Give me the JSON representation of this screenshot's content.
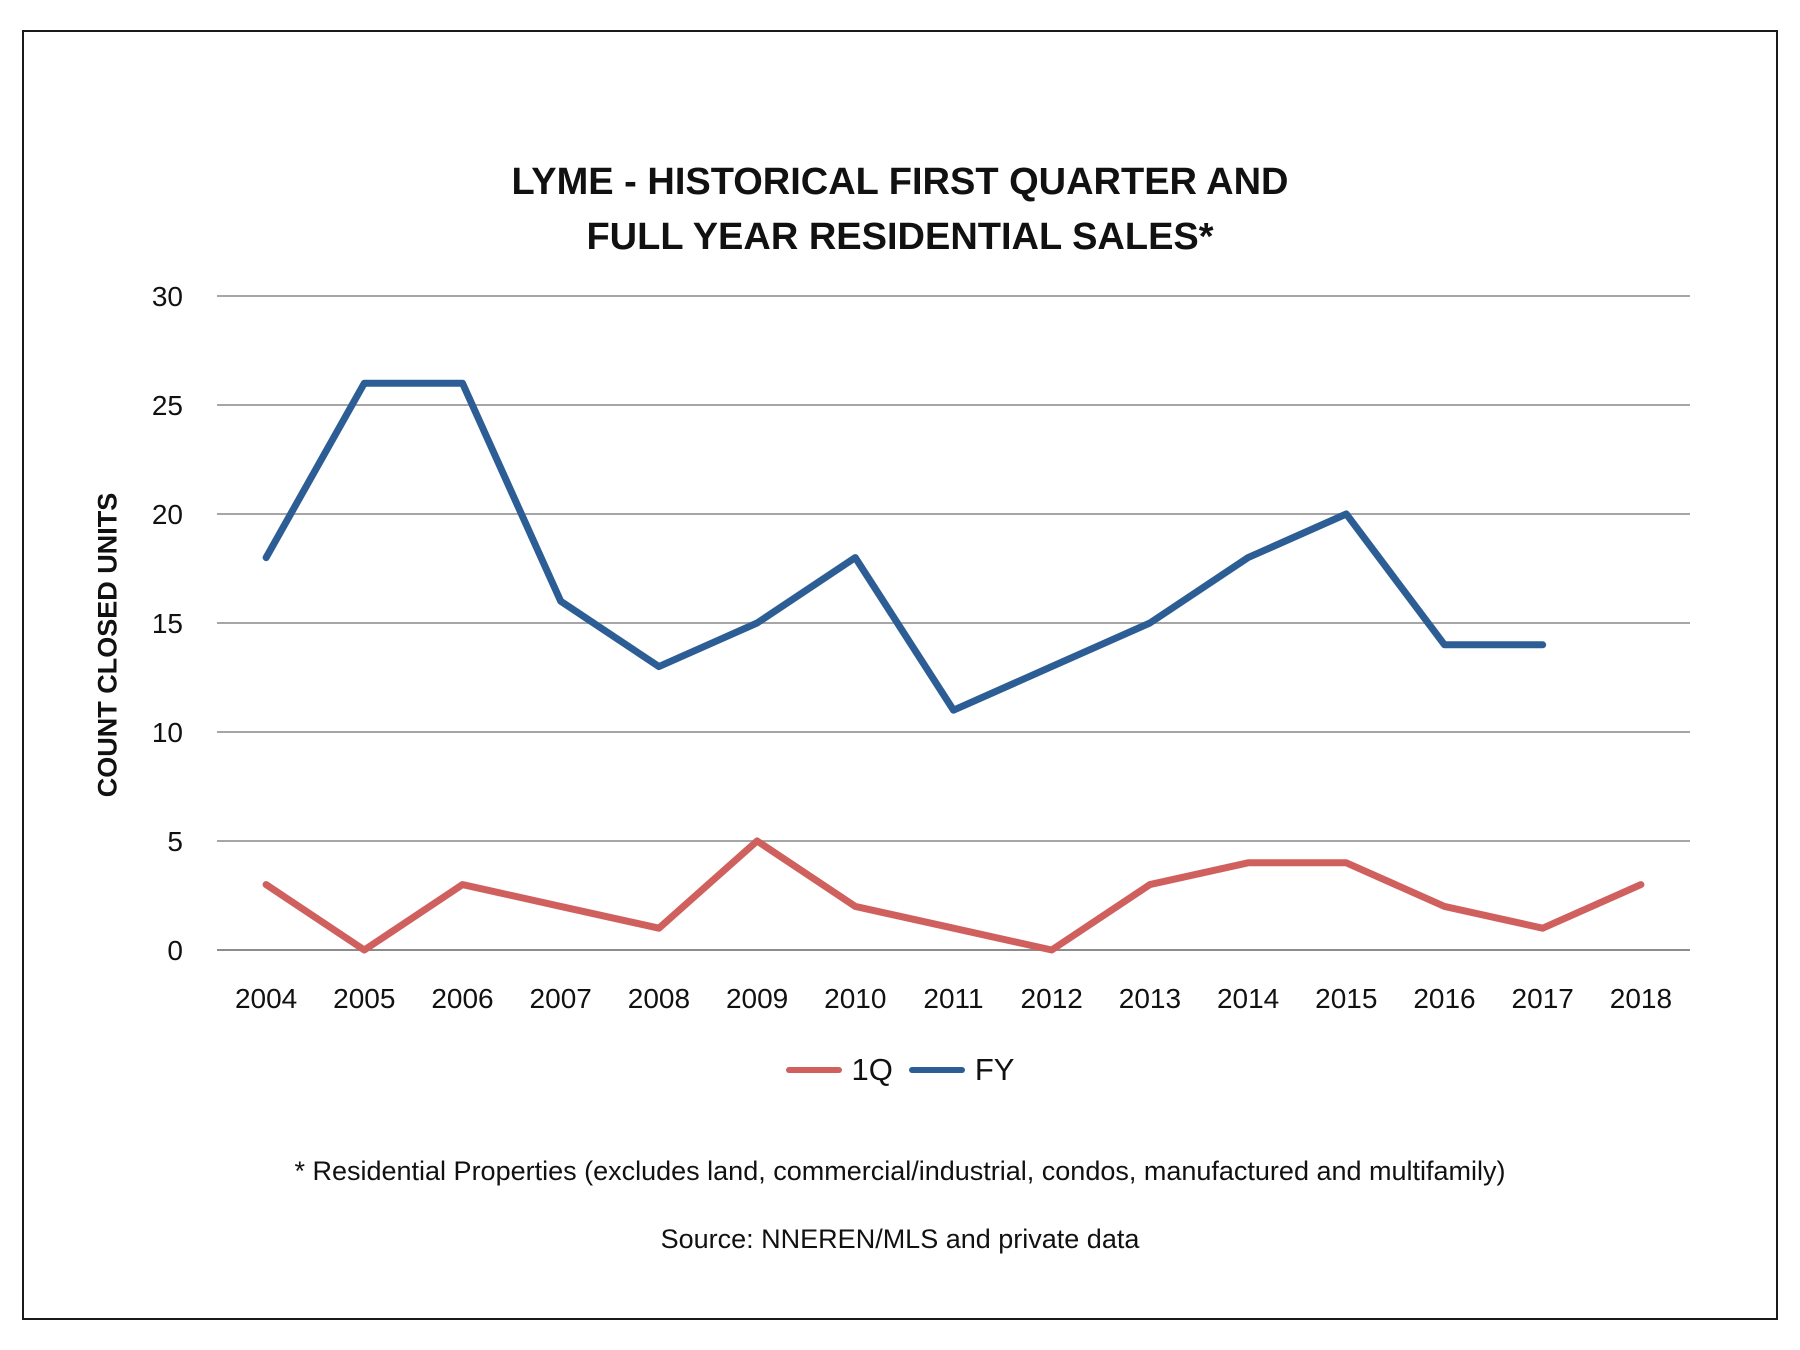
{
  "chart_data": {
    "type": "line",
    "title_line1": "LYME - HISTORICAL FIRST QUARTER AND",
    "title_line2": "FULL YEAR RESIDENTIAL SALES*",
    "xlabel": "",
    "ylabel": "COUNT CLOSED UNITS",
    "categories": [
      "2004",
      "2005",
      "2006",
      "2007",
      "2008",
      "2009",
      "2010",
      "2011",
      "2012",
      "2013",
      "2014",
      "2015",
      "2016",
      "2017",
      "2018"
    ],
    "ylim": [
      0,
      30
    ],
    "yticks": [
      0,
      5,
      10,
      15,
      20,
      25,
      30
    ],
    "grid": true,
    "legend_position": "bottom",
    "series": [
      {
        "name": "1Q",
        "color": "#d0605e",
        "values": [
          3,
          0,
          3,
          2,
          1,
          5,
          2,
          1,
          0,
          3,
          4,
          4,
          2,
          1,
          3
        ]
      },
      {
        "name": "FY",
        "color": "#2c5d95",
        "values": [
          18,
          26,
          26,
          16,
          13,
          15,
          18,
          11,
          13,
          15,
          18,
          20,
          14,
          14,
          null
        ]
      }
    ],
    "footnote": "* Residential Properties (excludes land, commercial/industrial, condos, manufactured and multifamily)",
    "source": "Source: NNEREN/MLS and private data"
  }
}
